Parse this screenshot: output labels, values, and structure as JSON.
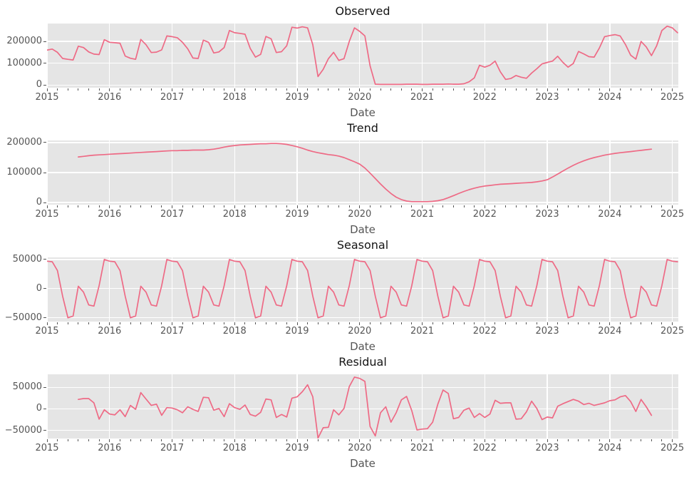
{
  "figure": {
    "background": "#ffffff",
    "axes_background": "#e5e5e5",
    "grid_color": "#ffffff",
    "line_color": "#ee6a85",
    "tick_label_color": "#555555",
    "title_color": "#151515"
  },
  "chart_data": [
    {
      "type": "line",
      "title": "Observed",
      "xlabel": "Date",
      "x_unit": "month",
      "x_start": 2015.0,
      "xlim": [
        2015.0,
        2025.096
      ],
      "ylim": [
        -12000,
        282000
      ],
      "yticks": [
        0,
        100000,
        200000
      ],
      "yticklabels": [
        "0",
        "100000",
        "200000"
      ],
      "xticks": [
        2015,
        2016,
        2017,
        2018,
        2019,
        2020,
        2021,
        2022,
        2023,
        2024,
        2025
      ],
      "xticklabels": [
        "2015",
        "2016",
        "2017",
        "2018",
        "2019",
        "2020",
        "2021",
        "2022",
        "2023",
        "2024",
        "2025"
      ],
      "values": [
        160000,
        165000,
        150000,
        122000,
        118000,
        115000,
        178000,
        172000,
        152000,
        142000,
        140000,
        208000,
        196000,
        194000,
        192000,
        133000,
        123000,
        118000,
        209000,
        185000,
        149000,
        151000,
        161000,
        225000,
        222000,
        217000,
        196000,
        166000,
        124000,
        122000,
        206000,
        196000,
        147000,
        152000,
        172000,
        250000,
        240000,
        237000,
        233000,
        168000,
        128000,
        141000,
        223000,
        212000,
        149000,
        153000,
        180000,
        265000,
        261000,
        267000,
        262000,
        185000,
        39000,
        72000,
        121000,
        150000,
        113000,
        121000,
        200000,
        262000,
        246000,
        225000,
        88000,
        4000,
        3000,
        3000,
        3000,
        3000,
        3000,
        4000,
        4000,
        4000,
        3000,
        3000,
        4000,
        4000,
        4000,
        5000,
        4000,
        4000,
        6000,
        15000,
        33000,
        91000,
        82000,
        91000,
        110000,
        61000,
        26000,
        30000,
        44000,
        36000,
        31000,
        55000,
        75000,
        97000,
        104000,
        110000,
        132000,
        104000,
        82000,
        99000,
        154000,
        143000,
        130000,
        128000,
        170000,
        222000,
        227000,
        231000,
        225000,
        186000,
        137000,
        119000,
        200000,
        175000,
        135000,
        180000,
        250000,
        270000,
        262000,
        240000
      ]
    },
    {
      "type": "line",
      "title": "Trend",
      "xlabel": "Date",
      "x_unit": "month",
      "x_start": 2015.5,
      "xlim": [
        2015.0,
        2025.096
      ],
      "ylim": [
        -7000,
        207000
      ],
      "yticks": [
        0,
        100000,
        200000
      ],
      "yticklabels": [
        "0",
        "100000",
        "200000"
      ],
      "xticks": [
        2015,
        2016,
        2017,
        2018,
        2019,
        2020,
        2021,
        2022,
        2023,
        2024,
        2025
      ],
      "xticklabels": [
        "2015",
        "2016",
        "2017",
        "2018",
        "2019",
        "2020",
        "2021",
        "2022",
        "2023",
        "2024",
        "2025"
      ],
      "values": [
        152000,
        154000,
        156000,
        158000,
        159000,
        160000,
        161000,
        162000,
        163000,
        164000,
        165000,
        166000,
        167000,
        168000,
        169000,
        170000,
        171000,
        172000,
        173000,
        173000,
        174000,
        174000,
        175000,
        175000,
        175000,
        176000,
        178000,
        181000,
        185000,
        188000,
        190000,
        192000,
        193000,
        194000,
        195000,
        196000,
        196000,
        197000,
        197000,
        196000,
        194000,
        190000,
        186000,
        181000,
        175000,
        170000,
        166000,
        163000,
        160000,
        158000,
        155000,
        150000,
        143000,
        136000,
        128000,
        115000,
        98000,
        80000,
        62000,
        45000,
        30000,
        18000,
        10000,
        5000,
        3000,
        3000,
        3000,
        3000,
        4000,
        6000,
        10000,
        16000,
        23000,
        30000,
        37000,
        43000,
        48000,
        52000,
        55000,
        57000,
        59000,
        61000,
        62000,
        63000,
        64000,
        65000,
        66000,
        67000,
        69000,
        72000,
        76000,
        85000,
        95000,
        105000,
        115000,
        124000,
        132000,
        139000,
        145000,
        150000,
        154000,
        158000,
        161000,
        164000,
        166000,
        168000,
        170000,
        172000,
        174000,
        176000,
        178000
      ]
    },
    {
      "type": "line",
      "title": "Seasonal",
      "xlabel": "Date",
      "x_unit": "month",
      "x_start": 2015.0,
      "n_points": 122,
      "xlim": [
        2015.0,
        2025.096
      ],
      "ylim": [
        -56500,
        53500
      ],
      "yticks": [
        -50000,
        0,
        50000
      ],
      "yticklabels": [
        "−50000",
        "0",
        "50000"
      ],
      "xticks": [
        2015,
        2016,
        2017,
        2018,
        2019,
        2020,
        2021,
        2022,
        2023,
        2024,
        2025
      ],
      "xticklabels": [
        "2015",
        "2016",
        "2017",
        "2018",
        "2019",
        "2020",
        "2021",
        "2022",
        "2023",
        "2024",
        "2025"
      ],
      "monthly_pattern": [
        47000,
        46000,
        31000,
        -13000,
        -50000,
        -47000,
        4000,
        -6000,
        -28000,
        -30000,
        5000,
        50000
      ]
    },
    {
      "type": "line",
      "title": "Residual",
      "xlabel": "Date",
      "x_unit": "month",
      "x_start": 2015.5,
      "xlim": [
        2015.0,
        2025.096
      ],
      "ylim": [
        -69000,
        80500
      ],
      "yticks": [
        -50000,
        0,
        50000
      ],
      "yticklabels": [
        "−50000",
        "0",
        "50000"
      ],
      "xticks": [
        2015,
        2016,
        2017,
        2018,
        2019,
        2020,
        2021,
        2022,
        2023,
        2024,
        2025
      ],
      "xticklabels": [
        "2015",
        "2016",
        "2017",
        "2018",
        "2019",
        "2020",
        "2021",
        "2022",
        "2023",
        "2024",
        "2025"
      ],
      "values": [
        22000,
        24000,
        24000,
        14000,
        -24000,
        -2000,
        -12000,
        -14000,
        -2000,
        -18000,
        8000,
        -1000,
        38000,
        23000,
        8000,
        11000,
        -15000,
        3000,
        2000,
        -2000,
        -9000,
        5000,
        -1000,
        -6000,
        27000,
        26000,
        -3000,
        1000,
        -18000,
        12000,
        3000,
        -1000,
        9000,
        -13000,
        -17000,
        -8000,
        23000,
        21000,
        -20000,
        -13000,
        -19000,
        25000,
        28000,
        40000,
        56000,
        28000,
        -68000,
        -44000,
        -43000,
        -2000,
        -14000,
        1000,
        52000,
        74000,
        71000,
        64000,
        -41000,
        -63000,
        -9000,
        5000,
        -31000,
        -9000,
        21000,
        29000,
        -4000,
        -49000,
        -47000,
        -46000,
        -31000,
        11000,
        44000,
        36000,
        -23000,
        -20000,
        -3000,
        2000,
        -20000,
        -11000,
        -20000,
        -12000,
        20000,
        13000,
        14000,
        14000,
        -24000,
        -23000,
        -7000,
        18000,
        1000,
        -25000,
        -19000,
        -21000,
        6000,
        12000,
        17000,
        22000,
        18000,
        10000,
        13000,
        8000,
        11000,
        14000,
        19000,
        21000,
        28000,
        31000,
        17000,
        -6000,
        22000,
        5000,
        -15000
      ]
    }
  ]
}
